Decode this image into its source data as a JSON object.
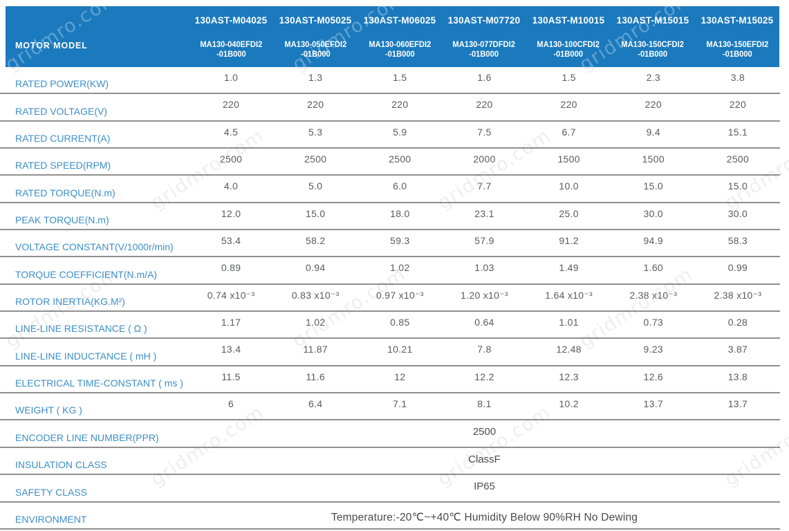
{
  "watermark": {
    "text": "gridmro.com"
  },
  "colors": {
    "header_bg": "#1b79bd",
    "row_label_blue": "#3b8ec8",
    "value_gray": "#595a5c",
    "divider_gray": "#8f8f8f"
  },
  "header": {
    "row_label": "MOTOR MODEL",
    "columns": [
      {
        "model": "130AST-M04025",
        "part": "MA130-040EFDI2",
        "part_suffix": "-01B000"
      },
      {
        "model": "130AST-M05025",
        "part": "MA130-050EFDI2",
        "part_suffix": "-01B000"
      },
      {
        "model": "130AST-M06025",
        "part": "MA130-060EFDI2",
        "part_suffix": "-01B000"
      },
      {
        "model": "130AST-M07720",
        "part": "MA130-077DFDI2",
        "part_suffix": "-01B000"
      },
      {
        "model": "130AST-M10015",
        "part": "MA130-100CFDI2",
        "part_suffix": "-01B000"
      },
      {
        "model": "130AST-M15015",
        "part": "MA130-150CFDI2",
        "part_suffix": "-01B000"
      },
      {
        "model": "130AST-M15025",
        "part": "MA130-150EFDI2",
        "part_suffix": "-01B000"
      }
    ]
  },
  "specs": {
    "rows": [
      {
        "label": "RATED POWER(KW)",
        "values": [
          "1.0",
          "1.3",
          "1.5",
          "1.6",
          "1.5",
          "2.3",
          "3.8"
        ]
      },
      {
        "label": "RATED VOLTAGE(V)",
        "values": [
          "220",
          "220",
          "220",
          "220",
          "220",
          "220",
          "220"
        ]
      },
      {
        "label": "RATED CURRENT(A)",
        "values": [
          "4.5",
          "5.3",
          "5.9",
          "7.5",
          "6.7",
          "9.4",
          "15.1"
        ]
      },
      {
        "label": "RATED SPEED(RPM)",
        "values": [
          "2500",
          "2500",
          "2500",
          "2000",
          "1500",
          "1500",
          "2500"
        ]
      },
      {
        "label": "RATED TORQUE(N.m)",
        "values": [
          "4.0",
          "5.0",
          "6.0",
          "7.7",
          "10.0",
          "15.0",
          "15.0"
        ]
      },
      {
        "label": "PEAK TORQUE(N.m)",
        "values": [
          "12.0",
          "15.0",
          "18.0",
          "23.1",
          "25.0",
          "30.0",
          "30.0"
        ]
      },
      {
        "label": "VOLTAGE CONSTANT(V/1000r/min)",
        "values": [
          "53.4",
          "58.2",
          "59.3",
          "57.9",
          "91.2",
          "94.9",
          "58.3"
        ]
      },
      {
        "label": "TORQUE COEFFICIENT(N.m/A)",
        "values": [
          "0.89",
          "0.94",
          "1.02",
          "1.03",
          "1.49",
          "1.60",
          "0.99"
        ]
      },
      {
        "label": "ROTOR INERTIA(KG.M²)",
        "values": [
          "0.74 x10⁻³",
          "0.83 x10⁻³",
          "0.97 x10⁻³",
          "1.20 x10⁻³",
          "1.64 x10⁻³",
          "2.38 x10⁻³",
          "2.38 x10⁻³"
        ]
      },
      {
        "label": "LINE-LINE RESISTANCE ( Ω )",
        "values": [
          "1.17",
          "1.02",
          "0.85",
          "0.64",
          "1.01",
          "0.73",
          "0.28"
        ]
      },
      {
        "label": "LINE-LINE INDUCTANCE ( mH )",
        "values": [
          "13.4",
          "11.87",
          "10.21",
          "7.8",
          "12.48",
          "9.23",
          "3.87"
        ]
      },
      {
        "label": "ELECTRICAL TIME-CONSTANT ( ms )",
        "values": [
          "11.5",
          "11.6",
          "12",
          "12.2",
          "12.3",
          "12.6",
          "13.8"
        ]
      },
      {
        "label": "WEIGHT ( KG )",
        "values": [
          "6",
          "6.4",
          "7.1",
          "8.1",
          "10.2",
          "13.7",
          "13.7"
        ]
      }
    ],
    "span_rows": [
      {
        "label": "ENCODER LINE NUMBER(PPR)",
        "value": "2500"
      },
      {
        "label": "INSULATION CLASS",
        "value": "ClassF"
      },
      {
        "label": "SAFETY CLASS",
        "value": "IP65"
      },
      {
        "label": "ENVIRONMENT",
        "value": "Temperature:-20℃~+40℃  Humidity Below 90%RH No Dewing"
      }
    ]
  }
}
